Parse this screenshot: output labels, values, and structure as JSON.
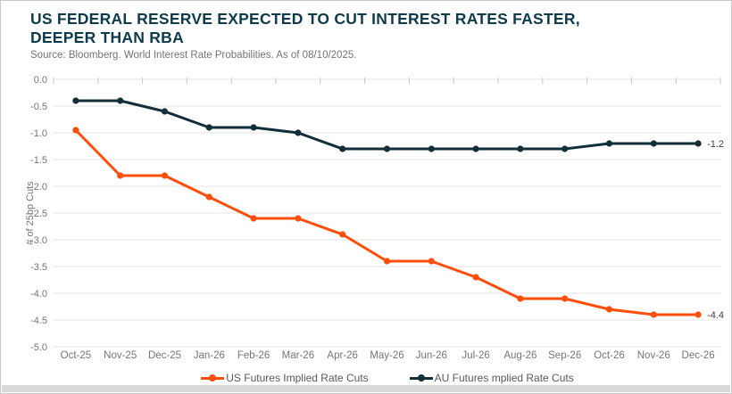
{
  "header": {
    "title_line1": "US FEDERAL RESERVE EXPECTED TO CUT INTEREST RATES FASTER,",
    "title_line2": "DEEPER THAN RBA",
    "source": "Source: Bloomberg. World Interest Rate Probabilities. As of 08/10/2025."
  },
  "chart_data": {
    "type": "line",
    "title": "US FEDERAL RESERVE EXPECTED TO CUT INTEREST RATES FASTER, DEEPER THAN RBA",
    "subtitle": "Source: Bloomberg. World Interest Rate Probabilities. As of 08/10/2025.",
    "categories": [
      "Oct-25",
      "Nov-25",
      "Dec-25",
      "Jan-26",
      "Feb-26",
      "Mar-26",
      "Apr-26",
      "May-26",
      "Jun-26",
      "Jul-26",
      "Aug-26",
      "Sep-26",
      "Oct-26",
      "Nov-26",
      "Dec-26"
    ],
    "series": [
      {
        "name": "US Futures Implied Rate Cuts",
        "color": "#ff4e0b",
        "values": [
          -0.95,
          -1.8,
          -1.8,
          -2.2,
          -2.6,
          -2.6,
          -2.9,
          -3.4,
          -3.4,
          -3.7,
          -4.1,
          -4.1,
          -4.3,
          -4.4,
          -4.4
        ],
        "end_label": "-4.4"
      },
      {
        "name": "AU Futures mplied Rate Cuts",
        "color": "#112e39",
        "values": [
          -0.4,
          -0.4,
          -0.6,
          -0.9,
          -0.9,
          -1.0,
          -1.3,
          -1.3,
          -1.3,
          -1.3,
          -1.3,
          -1.3,
          -1.2,
          -1.2,
          -1.2
        ],
        "end_label": "-1.2"
      }
    ],
    "xlabel": "",
    "ylabel": "# of 25bp Cuts",
    "ylim": [
      0.0,
      -5.0
    ],
    "ytick_step": 0.5,
    "yticks": [
      "0.0",
      "-0.5",
      "-1.0",
      "-1.5",
      "-2.0",
      "-2.5",
      "-3.0",
      "-3.5",
      "-4.0",
      "-4.5",
      "-5.0"
    ],
    "grid": "horizontal-only",
    "legend_position": "bottom",
    "marker": "circle"
  },
  "colors": {
    "title": "#0d3b4c",
    "us_line": "#ff4e0b",
    "au_line": "#112e39",
    "gridline": "#e3e3e3",
    "tick_mark": "#c6c6c6",
    "axis_text": "#757575",
    "end_label_text": "#3f3f3f",
    "legend_text": "#595959",
    "source_text": "#747474",
    "bottom_strip": "#d9d9d9",
    "frame_border": "#c9c9c9"
  }
}
